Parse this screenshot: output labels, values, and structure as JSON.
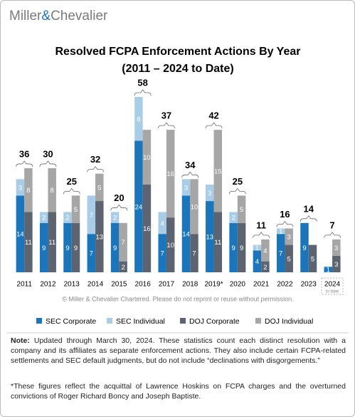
{
  "brand": {
    "first": "Miller",
    "amp": "&",
    "second": "Chevalier"
  },
  "chart_data": {
    "type": "bar",
    "title": "Resolved FCPA Enforcement Actions By Year",
    "subtitle": "(2011 – 2024 to Date)",
    "categories": [
      "2011",
      "2012",
      "2013",
      "2014",
      "2015",
      "2016",
      "2017",
      "2018",
      "2019*",
      "2020",
      "2021",
      "2022",
      "2023",
      "2024"
    ],
    "category_note": "to date",
    "series": [
      {
        "name": "SEC Corporate",
        "color": "#1a75bb",
        "values": [
          14,
          9,
          9,
          7,
          9,
          24,
          7,
          14,
          13,
          9,
          4,
          7,
          9,
          1
        ]
      },
      {
        "name": "SEC Individual",
        "color": "#a9cde6",
        "values": [
          3,
          2,
          2,
          7,
          2,
          8,
          4,
          3,
          3,
          2,
          1,
          1,
          null,
          null
        ]
      },
      {
        "name": "DOJ Corporate",
        "color": "#5b6470",
        "values": [
          11,
          11,
          9,
          13,
          2,
          16,
          10,
          7,
          11,
          9,
          2,
          5,
          5,
          3
        ]
      },
      {
        "name": "DOJ Individual",
        "color": "#a6a6a6",
        "values": [
          8,
          8,
          5,
          5,
          7,
          10,
          16,
          10,
          15,
          5,
          4,
          3,
          null,
          3
        ]
      }
    ],
    "totals": [
      36,
      30,
      25,
      32,
      20,
      58,
      37,
      34,
      42,
      25,
      11,
      16,
      14,
      7
    ],
    "copyright": "© Miller & Chevalier Chartered. Please do not reprint or reuse without permission."
  },
  "note": {
    "label": "Note:",
    "text": "Updated through March 30, 2024. These statistics count each distinct resolution with a company and its affiliates as separate enforcement actions. They also include certain FCPA-related settlements and SEC default judgments, but do not include “declinations with disgorgements.”"
  },
  "footnote": "*These figures reflect the acquittal of Lawrence Hoskins on FCPA charges and the overturned convictions of Roger Richard Boncy and Joseph Baptiste."
}
